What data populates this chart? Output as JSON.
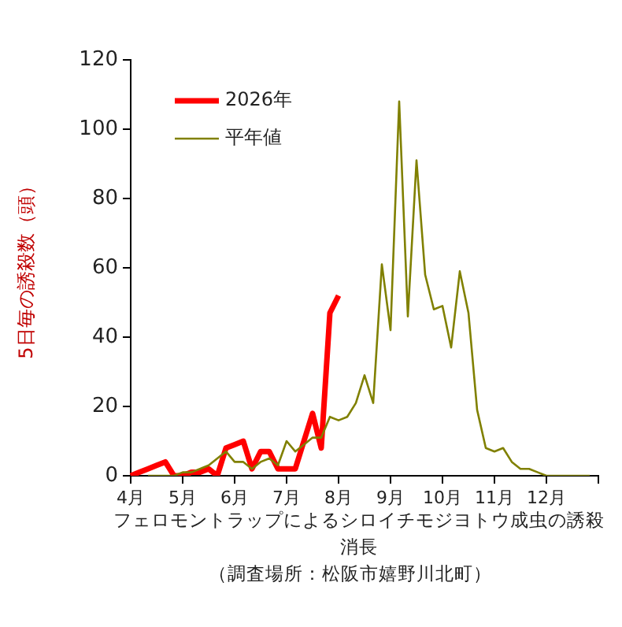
{
  "chart_data": {
    "type": "line",
    "ylabel": "5日毎の誘殺数（頭）",
    "xlabel": "フェロモントラップによるシロイチモジヨトウ成虫の誘殺消長",
    "annotations": [
      "（調査場所：松阪市嬉野川北町）"
    ],
    "categories": [
      "4月",
      null,
      null,
      null,
      null,
      null,
      "5月",
      null,
      null,
      null,
      null,
      null,
      "6月",
      null,
      null,
      null,
      null,
      null,
      "7月",
      null,
      null,
      null,
      null,
      null,
      "8月",
      null,
      null,
      null,
      null,
      null,
      "9月",
      null,
      null,
      null,
      null,
      null,
      "10月",
      null,
      null,
      null,
      null,
      null,
      "11月",
      null,
      null,
      null,
      null,
      null,
      "12月",
      null,
      null,
      null,
      null,
      null,
      null
    ],
    "ylim": [
      0,
      120
    ],
    "yticks": [
      0,
      20,
      40,
      60,
      80,
      100,
      120
    ],
    "grid": false,
    "legend": "top left",
    "marker": "none",
    "series": [
      {
        "name": "2026年",
        "color": "#ff0000",
        "values": [
          0,
          1,
          2,
          3,
          4,
          0,
          0,
          1,
          1,
          2,
          0,
          8,
          9,
          10,
          2,
          7,
          7,
          2,
          2,
          2,
          10,
          18,
          8,
          47,
          52,
          null,
          null,
          null,
          null,
          null,
          null,
          null,
          null,
          null,
          null,
          null,
          null,
          null,
          null,
          null,
          null,
          null,
          null,
          null,
          null,
          null,
          null,
          null,
          null,
          null,
          null,
          null,
          null,
          null,
          null
        ]
      },
      {
        "name": "平年値",
        "color": "#808000",
        "values": [
          null,
          null,
          0,
          0,
          0,
          0,
          1,
          1,
          2,
          3,
          5,
          7,
          4,
          4,
          2,
          4,
          5,
          3,
          10,
          7,
          9,
          11,
          11,
          17,
          16,
          17,
          21,
          29,
          21,
          61,
          42,
          108,
          46,
          91,
          58,
          48,
          49,
          37,
          59,
          47,
          19,
          8,
          7,
          8,
          4,
          2,
          2,
          1,
          0,
          0,
          0,
          0,
          0,
          0,
          null
        ]
      }
    ]
  }
}
